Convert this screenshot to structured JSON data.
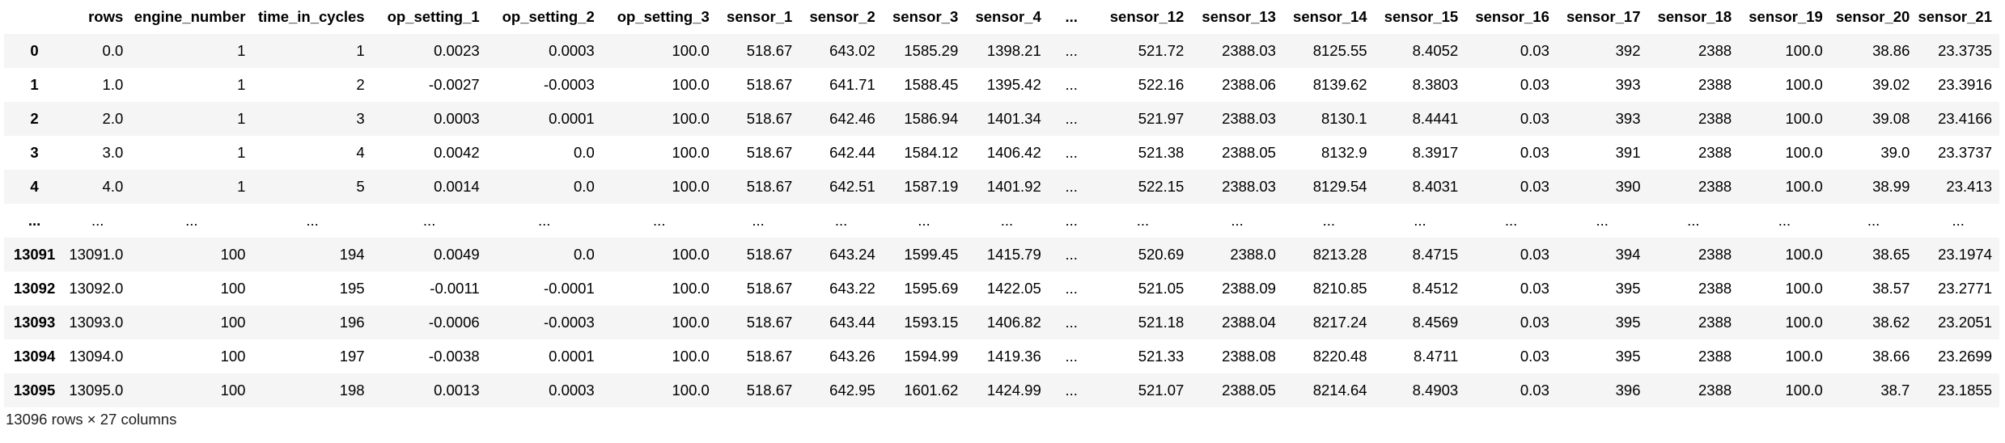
{
  "table": {
    "columns": [
      "",
      "rows",
      "engine_number",
      "time_in_cycles",
      "op_setting_1",
      "op_setting_2",
      "op_setting_3",
      "sensor_1",
      "sensor_2",
      "sensor_3",
      "sensor_4",
      "...",
      "sensor_12",
      "sensor_13",
      "sensor_14",
      "sensor_15",
      "sensor_16",
      "sensor_17",
      "sensor_18",
      "sensor_19",
      "sensor_20",
      "sensor_21"
    ],
    "rows": [
      [
        "0",
        "0.0",
        "1",
        "1",
        "0.0023",
        "0.0003",
        "100.0",
        "518.67",
        "643.02",
        "1585.29",
        "1398.21",
        "...",
        "521.72",
        "2388.03",
        "8125.55",
        "8.4052",
        "0.03",
        "392",
        "2388",
        "100.0",
        "38.86",
        "23.3735"
      ],
      [
        "1",
        "1.0",
        "1",
        "2",
        "-0.0027",
        "-0.0003",
        "100.0",
        "518.67",
        "641.71",
        "1588.45",
        "1395.42",
        "...",
        "522.16",
        "2388.06",
        "8139.62",
        "8.3803",
        "0.03",
        "393",
        "2388",
        "100.0",
        "39.02",
        "23.3916"
      ],
      [
        "2",
        "2.0",
        "1",
        "3",
        "0.0003",
        "0.0001",
        "100.0",
        "518.67",
        "642.46",
        "1586.94",
        "1401.34",
        "...",
        "521.97",
        "2388.03",
        "8130.1",
        "8.4441",
        "0.03",
        "393",
        "2388",
        "100.0",
        "39.08",
        "23.4166"
      ],
      [
        "3",
        "3.0",
        "1",
        "4",
        "0.0042",
        "0.0",
        "100.0",
        "518.67",
        "642.44",
        "1584.12",
        "1406.42",
        "...",
        "521.38",
        "2388.05",
        "8132.9",
        "8.3917",
        "0.03",
        "391",
        "2388",
        "100.0",
        "39.0",
        "23.3737"
      ],
      [
        "4",
        "4.0",
        "1",
        "5",
        "0.0014",
        "0.0",
        "100.0",
        "518.67",
        "642.51",
        "1587.19",
        "1401.92",
        "...",
        "522.15",
        "2388.03",
        "8129.54",
        "8.4031",
        "0.03",
        "390",
        "2388",
        "100.0",
        "38.99",
        "23.413"
      ],
      [
        "...",
        "...",
        "...",
        "...",
        "...",
        "...",
        "...",
        "...",
        "...",
        "...",
        "...",
        "...",
        "...",
        "...",
        "...",
        "...",
        "...",
        "...",
        "...",
        "...",
        "...",
        "..."
      ],
      [
        "13091",
        "13091.0",
        "100",
        "194",
        "0.0049",
        "0.0",
        "100.0",
        "518.67",
        "643.24",
        "1599.45",
        "1415.79",
        "...",
        "520.69",
        "2388.0",
        "8213.28",
        "8.4715",
        "0.03",
        "394",
        "2388",
        "100.0",
        "38.65",
        "23.1974"
      ],
      [
        "13092",
        "13092.0",
        "100",
        "195",
        "-0.0011",
        "-0.0001",
        "100.0",
        "518.67",
        "643.22",
        "1595.69",
        "1422.05",
        "...",
        "521.05",
        "2388.09",
        "8210.85",
        "8.4512",
        "0.03",
        "395",
        "2388",
        "100.0",
        "38.57",
        "23.2771"
      ],
      [
        "13093",
        "13093.0",
        "100",
        "196",
        "-0.0006",
        "-0.0003",
        "100.0",
        "518.67",
        "643.44",
        "1593.15",
        "1406.82",
        "...",
        "521.18",
        "2388.04",
        "8217.24",
        "8.4569",
        "0.03",
        "395",
        "2388",
        "100.0",
        "38.62",
        "23.2051"
      ],
      [
        "13094",
        "13094.0",
        "100",
        "197",
        "-0.0038",
        "0.0001",
        "100.0",
        "518.67",
        "643.26",
        "1594.99",
        "1419.36",
        "...",
        "521.33",
        "2388.08",
        "8220.48",
        "8.4711",
        "0.03",
        "395",
        "2388",
        "100.0",
        "38.66",
        "23.2699"
      ],
      [
        "13095",
        "13095.0",
        "100",
        "198",
        "0.0013",
        "0.0003",
        "100.0",
        "518.67",
        "642.95",
        "1601.62",
        "1424.99",
        "...",
        "521.07",
        "2388.05",
        "8214.64",
        "8.4903",
        "0.03",
        "396",
        "2388",
        "100.0",
        "38.7",
        "23.1855"
      ]
    ],
    "footer": "13096 rows × 27 columns"
  }
}
